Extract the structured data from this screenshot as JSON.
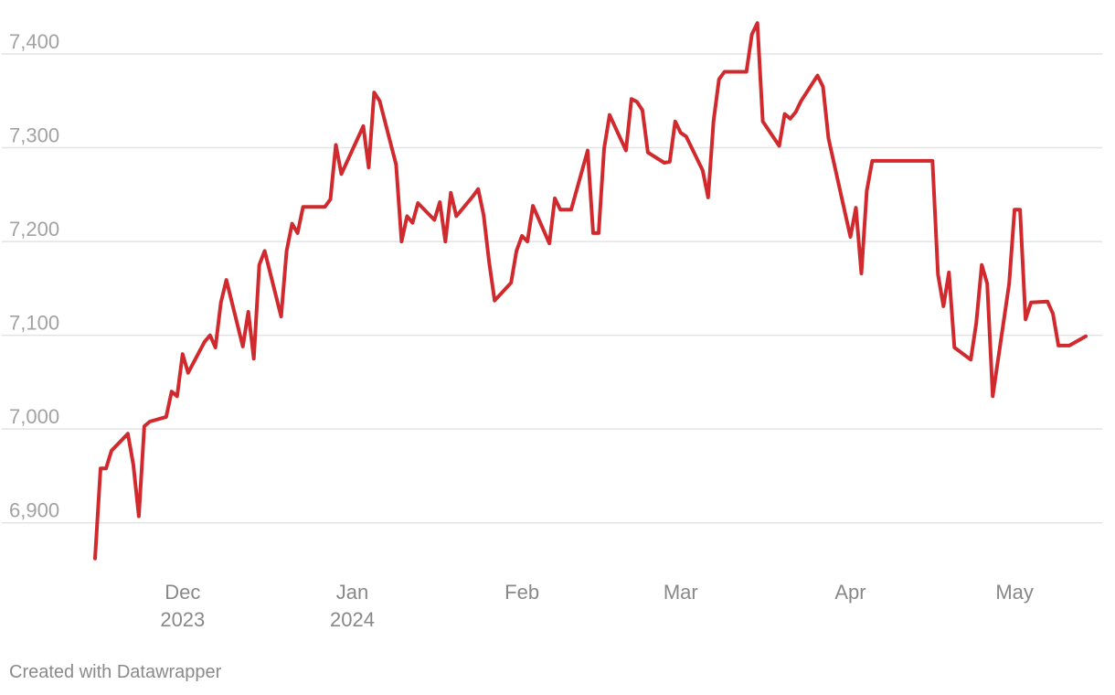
{
  "chart_data": {
    "type": "line",
    "title": "",
    "xlabel": "",
    "ylabel": "",
    "ylim": [
      6850,
      7440
    ],
    "xlim": [
      "2023-11-14",
      "2024-05-14"
    ],
    "yticks": [
      6900,
      7000,
      7100,
      7200,
      7300,
      7400
    ],
    "ytick_labels": [
      "6,900",
      "7,000",
      "7,100",
      "7,200",
      "7,300",
      "7,400"
    ],
    "xticks": [
      {
        "date": "2023-12-01",
        "lines": [
          "Dec",
          "2023"
        ]
      },
      {
        "date": "2024-01-01",
        "lines": [
          "Jan",
          "2024"
        ]
      },
      {
        "date": "2024-02-01",
        "lines": [
          "Feb"
        ]
      },
      {
        "date": "2024-03-01",
        "lines": [
          "Mar"
        ]
      },
      {
        "date": "2024-04-01",
        "lines": [
          "Apr"
        ]
      },
      {
        "date": "2024-05-01",
        "lines": [
          "May"
        ]
      }
    ],
    "grid": true,
    "legend": "none",
    "series": [
      {
        "color": "#d12a2e",
        "points": [
          [
            "2023-11-15",
            6862
          ],
          [
            "2023-11-16",
            6958
          ],
          [
            "2023-11-17",
            6958
          ],
          [
            "2023-11-18",
            6977
          ],
          [
            "2023-11-21",
            6995
          ],
          [
            "2023-11-22",
            6962
          ],
          [
            "2023-11-23",
            6907
          ],
          [
            "2023-11-24",
            7003
          ],
          [
            "2023-11-25",
            7008
          ],
          [
            "2023-11-28",
            7013
          ],
          [
            "2023-11-29",
            7040
          ],
          [
            "2023-11-30",
            7035
          ],
          [
            "2023-12-01",
            7080
          ],
          [
            "2023-12-02",
            7060
          ],
          [
            "2023-12-05",
            7093
          ],
          [
            "2023-12-06",
            7100
          ],
          [
            "2023-12-07",
            7087
          ],
          [
            "2023-12-08",
            7135
          ],
          [
            "2023-12-09",
            7159
          ],
          [
            "2023-12-12",
            7088
          ],
          [
            "2023-12-13",
            7125
          ],
          [
            "2023-12-14",
            7075
          ],
          [
            "2023-12-15",
            7175
          ],
          [
            "2023-12-16",
            7190
          ],
          [
            "2023-12-19",
            7120
          ],
          [
            "2023-12-20",
            7190
          ],
          [
            "2023-12-21",
            7219
          ],
          [
            "2023-12-22",
            7209
          ],
          [
            "2023-12-23",
            7237
          ],
          [
            "2023-12-27",
            7237
          ],
          [
            "2023-12-28",
            7245
          ],
          [
            "2023-12-29",
            7303
          ],
          [
            "2023-12-30",
            7272
          ],
          [
            "2024-01-03",
            7323
          ],
          [
            "2024-01-04",
            7279
          ],
          [
            "2024-01-05",
            7359
          ],
          [
            "2024-01-06",
            7350
          ],
          [
            "2024-01-09",
            7282
          ],
          [
            "2024-01-10",
            7200
          ],
          [
            "2024-01-11",
            7227
          ],
          [
            "2024-01-12",
            7220
          ],
          [
            "2024-01-13",
            7241
          ],
          [
            "2024-01-16",
            7223
          ],
          [
            "2024-01-17",
            7242
          ],
          [
            "2024-01-18",
            7200
          ],
          [
            "2024-01-19",
            7252
          ],
          [
            "2024-01-20",
            7227
          ],
          [
            "2024-01-23",
            7248
          ],
          [
            "2024-01-24",
            7256
          ],
          [
            "2024-01-25",
            7228
          ],
          [
            "2024-01-26",
            7178
          ],
          [
            "2024-01-27",
            7137
          ],
          [
            "2024-01-30",
            7156
          ],
          [
            "2024-01-31",
            7190
          ],
          [
            "2024-02-01",
            7206
          ],
          [
            "2024-02-02",
            7200
          ],
          [
            "2024-02-03",
            7238
          ],
          [
            "2024-02-06",
            7198
          ],
          [
            "2024-02-07",
            7246
          ],
          [
            "2024-02-08",
            7234
          ],
          [
            "2024-02-10",
            7234
          ],
          [
            "2024-02-13",
            7297
          ],
          [
            "2024-02-14",
            7209
          ],
          [
            "2024-02-15",
            7209
          ],
          [
            "2024-02-16",
            7299
          ],
          [
            "2024-02-17",
            7335
          ],
          [
            "2024-02-20",
            7297
          ],
          [
            "2024-02-21",
            7352
          ],
          [
            "2024-02-22",
            7349
          ],
          [
            "2024-02-23",
            7340
          ],
          [
            "2024-02-24",
            7295
          ],
          [
            "2024-02-27",
            7284
          ],
          [
            "2024-02-28",
            7285
          ],
          [
            "2024-02-29",
            7328
          ],
          [
            "2024-03-01",
            7316
          ],
          [
            "2024-03-02",
            7312
          ],
          [
            "2024-03-05",
            7276
          ],
          [
            "2024-03-06",
            7247
          ],
          [
            "2024-03-07",
            7328
          ],
          [
            "2024-03-08",
            7373
          ],
          [
            "2024-03-09",
            7381
          ],
          [
            "2024-03-12",
            7381
          ],
          [
            "2024-03-13",
            7381
          ],
          [
            "2024-03-14",
            7421
          ],
          [
            "2024-03-15",
            7433
          ],
          [
            "2024-03-16",
            7328
          ],
          [
            "2024-03-19",
            7302
          ],
          [
            "2024-03-20",
            7336
          ],
          [
            "2024-03-21",
            7331
          ],
          [
            "2024-03-22",
            7338
          ],
          [
            "2024-03-23",
            7350
          ],
          [
            "2024-03-26",
            7377
          ],
          [
            "2024-03-27",
            7365
          ],
          [
            "2024-03-28",
            7310
          ],
          [
            "2024-04-01",
            7205
          ],
          [
            "2024-04-02",
            7236
          ],
          [
            "2024-04-03",
            7166
          ],
          [
            "2024-04-04",
            7254
          ],
          [
            "2024-04-05",
            7286
          ],
          [
            "2024-04-16",
            7286
          ],
          [
            "2024-04-17",
            7165
          ],
          [
            "2024-04-18",
            7131
          ],
          [
            "2024-04-19",
            7167
          ],
          [
            "2024-04-20",
            7087
          ],
          [
            "2024-04-23",
            7074
          ],
          [
            "2024-04-24",
            7113
          ],
          [
            "2024-04-25",
            7175
          ],
          [
            "2024-04-26",
            7155
          ],
          [
            "2024-04-27",
            7035
          ],
          [
            "2024-04-30",
            7155
          ],
          [
            "2024-05-01",
            7234
          ],
          [
            "2024-05-02",
            7234
          ],
          [
            "2024-05-03",
            7117
          ],
          [
            "2024-05-04",
            7135
          ],
          [
            "2024-05-07",
            7136
          ],
          [
            "2024-05-08",
            7123
          ],
          [
            "2024-05-09",
            7089
          ],
          [
            "2024-05-11",
            7089
          ],
          [
            "2024-05-14",
            7099
          ]
        ]
      }
    ]
  },
  "footer": {
    "credit": "Created with Datawrapper"
  }
}
